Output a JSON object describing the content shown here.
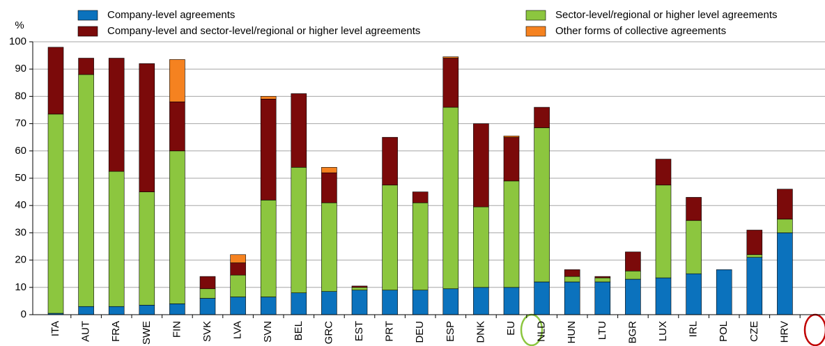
{
  "chart_data": {
    "type": "stacked_bar",
    "y_label": "%",
    "categories": [
      "ITA",
      "AUT",
      "FRA",
      "SWE",
      "FIN",
      "SVK",
      "LVA",
      "SVN",
      "BEL",
      "GRC",
      "EST",
      "PRT",
      "DEU",
      "ESP",
      "DNK",
      "EU",
      "NLD",
      "HUN",
      "LTU",
      "BGR",
      "LUX",
      "IRL",
      "POL",
      "CZE",
      "HRV"
    ],
    "series": [
      {
        "name": "Company-level agreements",
        "color": "#0b72bd",
        "values": [
          0.5,
          3,
          3,
          3.5,
          4,
          6,
          6.5,
          6.5,
          8,
          8.5,
          9,
          9,
          9,
          9.5,
          10,
          10,
          12,
          12,
          12,
          13,
          13.5,
          15,
          16.5,
          21,
          30
        ]
      },
      {
        "name": "Sector-level/regional or higher level agreements",
        "color": "#8cc63f",
        "values": [
          73,
          85,
          49.5,
          41.5,
          56,
          3.5,
          8,
          35.5,
          46,
          32.5,
          1,
          38.5,
          32,
          66.5,
          29.5,
          39,
          56.5,
          2,
          1.5,
          3,
          34,
          19.5,
          0,
          1,
          5
        ]
      },
      {
        "name": "Company-level and sector-level/regional or higher level agreements",
        "color": "#7b0a0a",
        "values": [
          24.5,
          6,
          41.5,
          47,
          18,
          4.5,
          4.5,
          37,
          27,
          11,
          0.5,
          17.5,
          4,
          18,
          30.5,
          16,
          7.5,
          2.5,
          0.5,
          7,
          9.5,
          8.5,
          0,
          9,
          11
        ]
      },
      {
        "name": "Other forms of collective agreements",
        "color": "#f58220",
        "values": [
          0,
          0,
          0,
          0,
          15.5,
          0,
          3,
          1,
          0,
          2,
          0,
          0,
          0,
          0.5,
          0,
          0.5,
          0,
          0,
          0,
          0,
          0,
          0,
          0,
          0,
          0
        ]
      }
    ],
    "ylim": [
      0,
      100
    ],
    "yticks": [
      0,
      10,
      20,
      30,
      40,
      50,
      60,
      70,
      80,
      90,
      100
    ],
    "grid": true
  }
}
